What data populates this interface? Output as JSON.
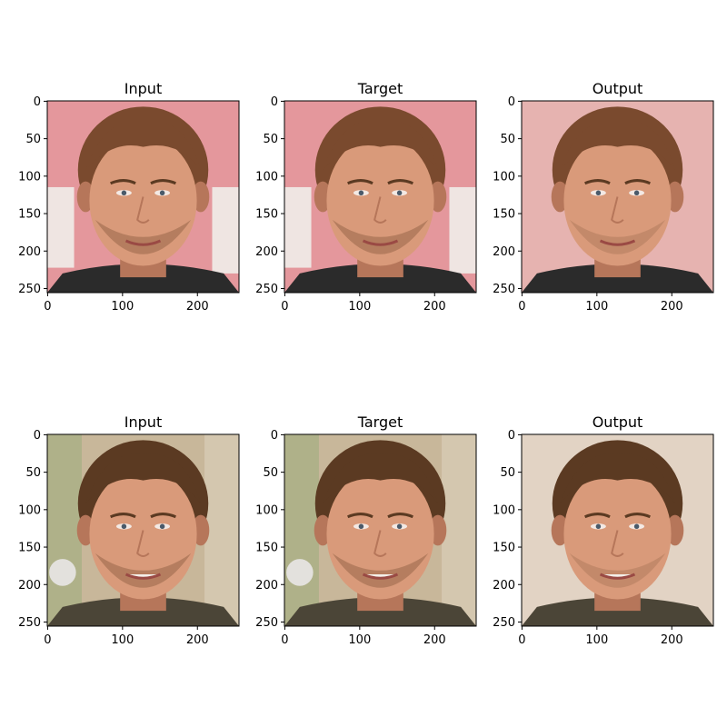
{
  "figure": {
    "panels": [
      {
        "title": "Input",
        "variant": "input",
        "bg": "pink"
      },
      {
        "title": "Target",
        "variant": "target",
        "bg": "pink"
      },
      {
        "title": "Output",
        "variant": "output",
        "bg": "pink"
      },
      {
        "title": "Input",
        "variant": "input",
        "bg": "garden"
      },
      {
        "title": "Target",
        "variant": "target",
        "bg": "garden"
      },
      {
        "title": "Output",
        "variant": "output",
        "bg": "garden"
      }
    ],
    "x_ticks": [
      "0",
      "100",
      "200"
    ],
    "y_ticks": [
      "0",
      "50",
      "100",
      "150",
      "200",
      "250"
    ],
    "tick_values_x": [
      0,
      100,
      200
    ],
    "tick_values_y": [
      0,
      50,
      100,
      150,
      200,
      250
    ],
    "image_extent": 256
  },
  "colors": {
    "pink_bg": "#e4979c",
    "garden_bg": "#c8b79a",
    "output_bg_1": "#e6b3b0",
    "output_bg_2": "#e2d3c4",
    "skin": "#d99a7a",
    "skin_shadow": "#b6765a",
    "hair_1": "#7a4a2e",
    "hair_2": "#5b3a22",
    "beard": "#9c6a4c",
    "shirt_dark": "#2b2b2b",
    "shirt_light": "#e8e8e8",
    "letters": "#efe5e2"
  }
}
